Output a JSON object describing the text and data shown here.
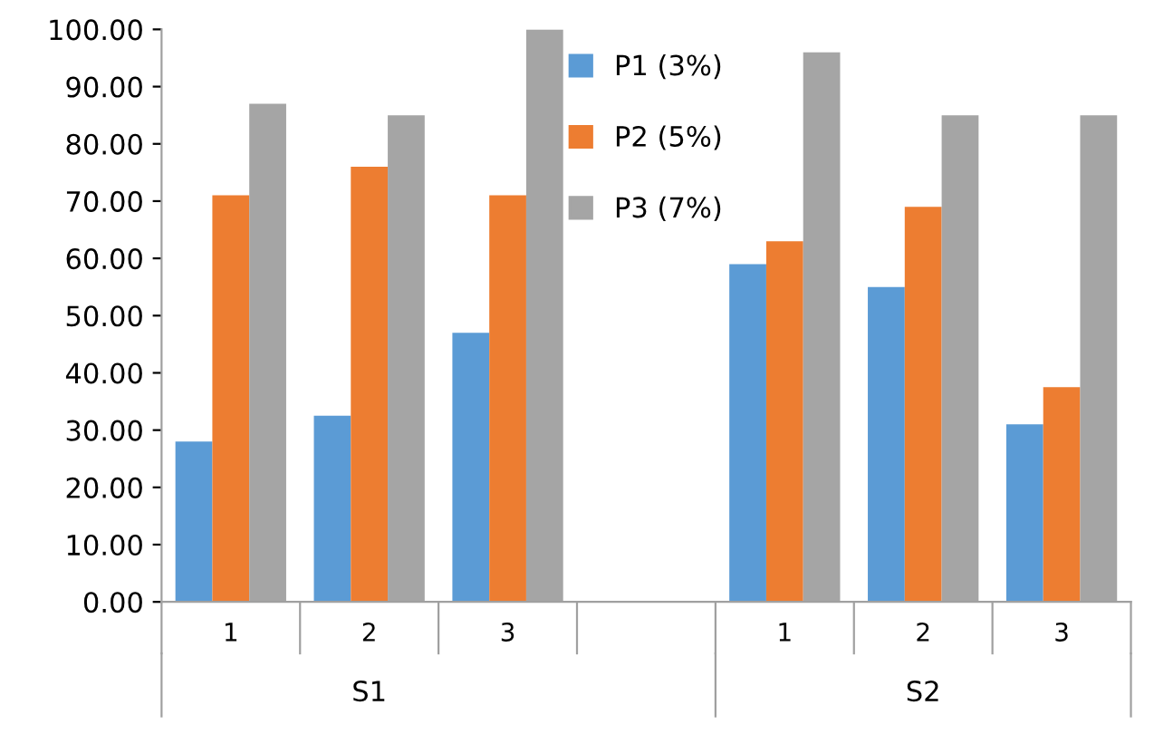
{
  "chart_data": {
    "type": "bar",
    "categories": [
      "1",
      "2",
      "3",
      null,
      "1",
      "2",
      "3"
    ],
    "annotations": [
      "S1",
      "S2"
    ],
    "series": [
      {
        "name": "P1 (3%)",
        "color": "#5b9bd5",
        "values": [
          28,
          32.5,
          47,
          null,
          59,
          55,
          31
        ]
      },
      {
        "name": "P2 (5%)",
        "color": "#ed7d31",
        "values": [
          71,
          76,
          71,
          null,
          63,
          69,
          37.5
        ]
      },
      {
        "name": "P3 (7%)",
        "color": "#a5a5a5",
        "values": [
          87,
          85,
          100,
          null,
          96,
          85,
          85
        ]
      }
    ],
    "ylim": [
      0,
      100
    ],
    "yticks": [
      {
        "value": 0,
        "label": "0.00"
      },
      {
        "value": 10,
        "label": "10.00"
      },
      {
        "value": 20,
        "label": "20.00"
      },
      {
        "value": 30,
        "label": "30.00"
      },
      {
        "value": 40,
        "label": "40.00"
      },
      {
        "value": 50,
        "label": "50.00"
      },
      {
        "value": 60,
        "label": "60.00"
      },
      {
        "value": 70,
        "label": "70.00"
      },
      {
        "value": 80,
        "label": "80.00"
      },
      {
        "value": 90,
        "label": "90.00"
      },
      {
        "value": 100,
        "label": "100.00"
      }
    ],
    "grid": false,
    "legend": "top"
  }
}
